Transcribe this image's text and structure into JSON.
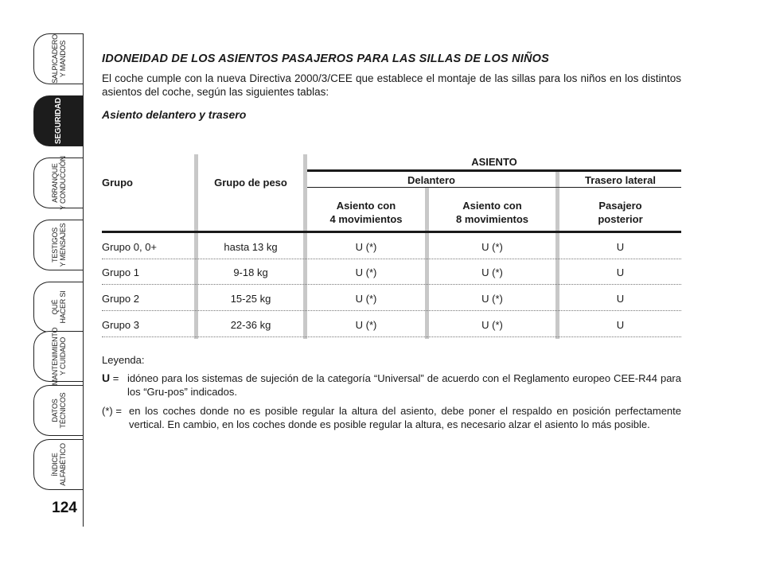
{
  "sidebar": {
    "tabs": [
      {
        "label": "SALPICADERO\nY MANDOS",
        "active": false
      },
      {
        "label": "SEGURIDAD",
        "active": true
      },
      {
        "label": "ARRANQUE\nY CONDUCCIÓN",
        "active": false
      },
      {
        "label": "TESTIGOS\nY MENSAJES",
        "active": false
      },
      {
        "label": "QUÉ\nHACER SI",
        "active": false
      },
      {
        "label": "MANTENIMIENTO\nY CUIDADO",
        "active": false
      },
      {
        "label": "DATOS\nTÉCNICOS",
        "active": false
      },
      {
        "label": "ÍNDICE\nALFABÉTICO",
        "active": false
      }
    ],
    "page_number": "124",
    "active_color": "#1c1c1c"
  },
  "doc": {
    "title": "IDONEIDAD DE LOS ASIENTOS PASAJEROS PARA LAS SILLAS DE LOS NIÑOS",
    "intro": "El coche cumple con la nueva Directiva 2000/3/CEE que establece el montaje de las sillas para los niños en los distintos asientos del coche, según las siguientes tablas:",
    "subtitle": "Asiento delantero y trasero"
  },
  "table": {
    "header": {
      "asiento": "ASIENTO",
      "grupo": "Grupo",
      "grupo_peso": "Grupo de peso",
      "delantero": "Delantero",
      "trasero": "Trasero lateral",
      "col1": "Asiento con\n4 movimientos",
      "col2": "Asiento con\n8 movimientos",
      "col3": "Pasajero\nposterior"
    },
    "rows": [
      {
        "grupo": "Grupo 0, 0+",
        "peso": "hasta 13 kg",
        "c1": "U (*)",
        "c2": "U (*)",
        "c3": "U"
      },
      {
        "grupo": "Grupo 1",
        "peso": "9-18 kg",
        "c1": "U (*)",
        "c2": "U (*)",
        "c3": "U"
      },
      {
        "grupo": "Grupo 2",
        "peso": "15-25 kg",
        "c1": "U (*)",
        "c2": "U (*)",
        "c3": "U"
      },
      {
        "grupo": "Grupo 3",
        "peso": "22-36 kg",
        "c1": "U (*)",
        "c2": "U (*)",
        "c3": "U"
      }
    ]
  },
  "legend": {
    "title": "Leyenda:",
    "u_key": "U =",
    "u_text": "idóneo para los sistemas de sujeción de la categoría “Universal” de acuerdo con el Reglamento europeo CEE-R44 para los “Gru-pos” indicados.",
    "star_key": "(*) =",
    "star_text": "en los coches donde no es posible regular la altura del asiento, debe poner el respaldo en posición perfectamente vertical. En cambio, en los coches donde es posible regular la altura, es necesario alzar el asiento lo más posible."
  }
}
